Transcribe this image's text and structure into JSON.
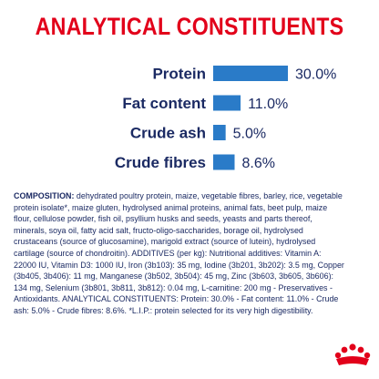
{
  "page": {
    "title": "ANALYTICAL CONSTITUENTS"
  },
  "chart_data": {
    "type": "bar",
    "orientation": "horizontal",
    "title": "ANALYTICAL CONSTITUENTS",
    "categories": [
      "Protein",
      "Fat content",
      "Crude ash",
      "Crude fibres"
    ],
    "values": [
      30.0,
      11.0,
      5.0,
      8.6
    ],
    "value_labels": [
      "30.0%",
      "11.0%",
      "5.0%",
      "8.6%"
    ],
    "xlim": [
      0,
      30
    ],
    "grid": false,
    "legend": "none",
    "bar_color": "#2a7bc8"
  },
  "composition": {
    "heading": "COMPOSITION:",
    "text": " dehydrated poultry protein, maize, vegetable fibres, barley, rice, vegetable protein isolate*, maize gluten, hydrolysed animal proteins, animal fats, beet pulp, maize flour, cellulose powder, fish oil, psyllium husks and seeds, yeasts and parts thereof, minerals, soya oil, fatty acid salt, fructo-oligo-saccharides, borage oil, hydrolysed crustaceans (source of glucosamine), marigold extract (source of lutein), hydrolysed cartilage (source of chondroitin). ADDITIVES (per kg): Nutritional additives: Vitamin A: 22000 IU, Vitamin D3: 1000 IU, Iron (3b103): 35 mg, Iodine (3b201, 3b202): 3.5 mg, Copper (3b405, 3b406): 11 mg, Manganese (3b502, 3b504): 45 mg, Zinc (3b603, 3b605, 3b606): 134 mg, Selenium (3b801, 3b811, 3b812): 0.04 mg, L-carnitine: 200 mg - Preservatives - Antioxidants. ANALYTICAL CONSTITUENTS: Protein: 30.0% - Fat content: 11.0% - Crude ash: 5.0% - Crude fibres: 8.6%. *L.I.P.: protein selected for its very high digestibility."
  },
  "brand": {
    "logo_color": "#e2001a",
    "logo_icon": "crown-logo-icon"
  }
}
